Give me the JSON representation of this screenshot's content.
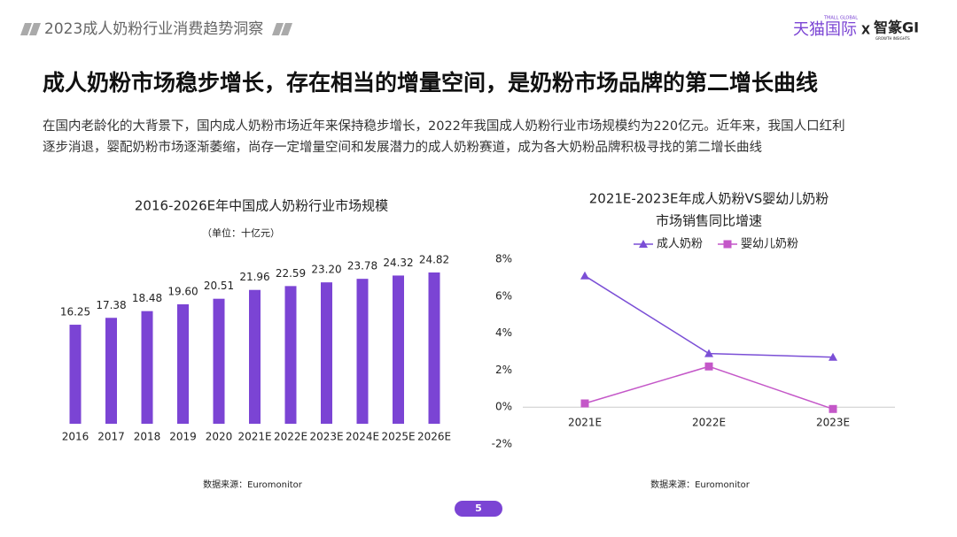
{
  "header": {
    "title": "2023成人奶粉行业消费趋势洞察",
    "logo_brand": "天猫国际",
    "logo_small": "TMALL GLOBAL",
    "logo_x": "X",
    "logo_partner": "智篆GI",
    "logo_partner_sub": "GROWTH INSIGHTS"
  },
  "headline": "成人奶粉市场稳步增长，存在相当的增量空间，是奶粉市场品牌的第二增长曲线",
  "body": [
    "在国内老龄化的大背景下，国内成人奶粉市场近年来保持稳步增长，2022年我国成人奶粉行业市场规模约为220亿元。近年来，我国人口红利",
    "逐步消退，婴配奶粉市场逐渐萎缩，尚存一定增量空间和发展潜力的成人奶粉赛道，成为各大奶粉品牌积极寻找的第二增长曲线"
  ],
  "page_number": "5",
  "chart_data": [
    {
      "type": "bar",
      "title": "2016-2026E年中国成人奶粉行业市场规模",
      "subtitle": "（单位：十亿元）",
      "color": "#7b44d4",
      "categories": [
        "2016",
        "2017",
        "2018",
        "2019",
        "2020",
        "2021E",
        "2022E",
        "2023E",
        "2024E",
        "2025E",
        "2026E"
      ],
      "values": [
        16.25,
        17.38,
        18.48,
        19.6,
        20.51,
        21.96,
        22.59,
        23.2,
        23.78,
        24.32,
        24.82
      ],
      "value_labels": [
        "16.25",
        "17.38",
        "18.48",
        "19.60",
        "20.51",
        "21.96",
        "22.59",
        "23.20",
        "23.78",
        "24.32",
        "24.82"
      ],
      "source": "数据来源：Euromonitor"
    },
    {
      "type": "line",
      "title": "2021E-2023E年成人奶粉VS婴幼儿奶粉",
      "subtitle": "市场销售同比增速",
      "categories": [
        "2021E",
        "2022E",
        "2023E"
      ],
      "series": [
        {
          "name": "成人奶粉",
          "color": "#7b4fd6",
          "marker": "triangle",
          "values": [
            7.1,
            2.9,
            2.7
          ]
        },
        {
          "name": "婴幼儿奶粉",
          "color": "#c457c8",
          "marker": "square",
          "values": [
            0.2,
            2.2,
            -0.1
          ]
        }
      ],
      "ylim": [
        -2,
        8
      ],
      "yticks": [
        {
          "value": -2,
          "label": "-2%"
        },
        {
          "value": 0,
          "label": "0%"
        },
        {
          "value": 2,
          "label": "2%"
        },
        {
          "value": 4,
          "label": "4%"
        },
        {
          "value": 6,
          "label": "6%"
        },
        {
          "value": 8,
          "label": "8%"
        }
      ],
      "legend": "top",
      "source": "数据来源：Euromonitor"
    }
  ]
}
